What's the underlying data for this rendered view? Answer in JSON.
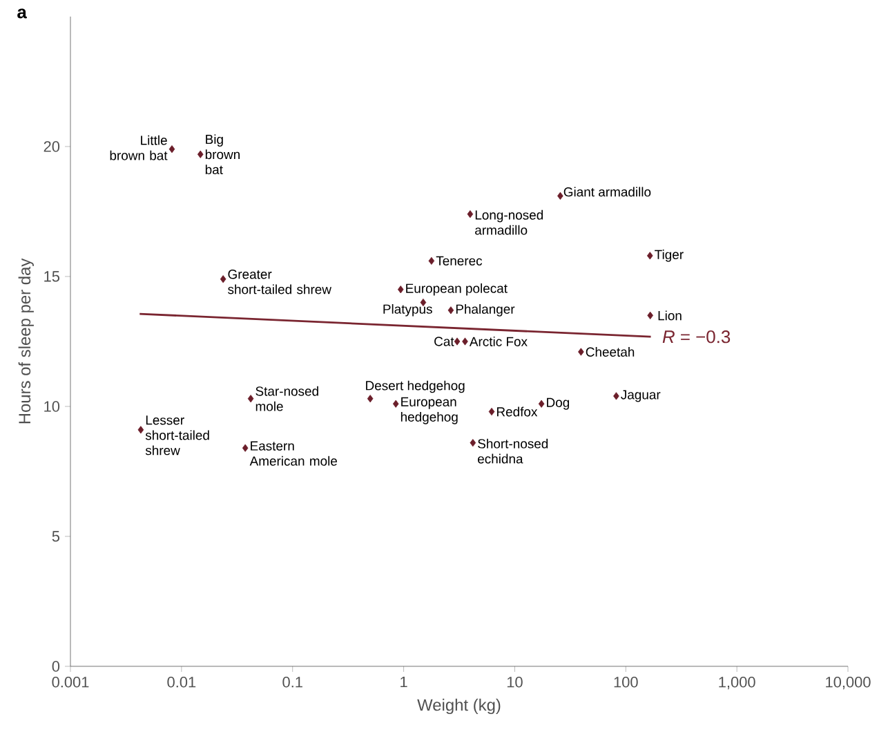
{
  "chart_data": {
    "type": "scatter",
    "xlabel": "Weight (kg)",
    "ylabel": "Hours of sleep per day",
    "log": "x",
    "marker": "diamond",
    "xlim": [
      0.001,
      10000
    ],
    "xticks": [
      0.001,
      0.01,
      0.1,
      1,
      10,
      100,
      {
        "value": 1000,
        "label": "1,000"
      },
      {
        "value": 10000,
        "label": "10,000"
      }
    ],
    "ylim": [
      0,
      25
    ],
    "yticks": [
      0,
      5,
      10,
      15,
      20
    ],
    "series": [
      {
        "color": "#6b1e2a",
        "x": [
          0.0082,
          0.0148,
          0.0237,
          0.0043,
          0.042,
          0.0375,
          0.5,
          0.85,
          1.5,
          0.94,
          1.78,
          3.97,
          25.7,
          2.66,
          3.03,
          3.57,
          39.5,
          165,
          166,
          82,
          17.4,
          6.2,
          4.2
        ],
        "values": [
          19.9,
          19.7,
          14.9,
          9.1,
          10.3,
          8.4,
          10.3,
          10.1,
          14.0,
          14.5,
          15.6,
          17.4,
          18.1,
          13.7,
          12.5,
          12.5,
          12.1,
          15.8,
          13.5,
          10.4,
          10.1,
          9.8,
          8.6
        ]
      },
      {
        "type": "line",
        "marker": "none",
        "color": "#7a2530",
        "x": [
          0.0042,
          168
        ],
        "values": [
          13.56,
          12.68
        ]
      }
    ],
    "annotations": [
      "a",
      {
        "text": "*R* = −0.3",
        "x": 168,
        "y": 12.68
      },
      {
        "text": "Little brown bat",
        "x": 0.0082,
        "y": 19.9
      },
      {
        "text": "Big brown bat",
        "x": 0.0148,
        "y": 19.7
      },
      {
        "text": "Greater short-tailed shrew",
        "x": 0.0237,
        "y": 14.9
      },
      {
        "text": "Lesser short-tailed shrew",
        "x": 0.0043,
        "y": 9.1
      },
      {
        "text": "Star-nosed mole",
        "x": 0.042,
        "y": 10.3
      },
      {
        "text": "Eastern American mole",
        "x": 0.0375,
        "y": 8.4
      },
      {
        "text": "Desert hedgehog",
        "x": 0.5,
        "y": 10.3
      },
      {
        "text": "European hedgehog",
        "x": 0.85,
        "y": 10.1
      },
      {
        "text": "Platypus",
        "x": 1.5,
        "y": 14.0
      },
      {
        "text": "European polecat",
        "x": 0.94,
        "y": 14.5
      },
      {
        "text": "Tenerec",
        "x": 1.78,
        "y": 15.6
      },
      {
        "text": "Long-nosed armadillo",
        "x": 3.97,
        "y": 17.4
      },
      {
        "text": "Giant armadillo",
        "x": 25.7,
        "y": 18.1
      },
      {
        "text": "Phalanger",
        "x": 2.66,
        "y": 13.7
      },
      {
        "text": "Cat",
        "x": 3.03,
        "y": 12.5
      },
      {
        "text": "Arctic Fox",
        "x": 3.57,
        "y": 12.5
      },
      {
        "text": "Cheetah",
        "x": 39.5,
        "y": 12.1
      },
      {
        "text": "Tiger",
        "x": 165,
        "y": 15.8
      },
      {
        "text": "Lion",
        "x": 166,
        "y": 13.5
      },
      {
        "text": "Jaguar",
        "x": 82,
        "y": 10.4
      },
      {
        "text": "Dog",
        "x": 17.4,
        "y": 10.1
      },
      {
        "text": "Redfox",
        "x": 6.2,
        "y": 9.8
      },
      {
        "text": "Short-nosed echidna",
        "x": 4.2,
        "y": 8.6
      }
    ]
  }
}
